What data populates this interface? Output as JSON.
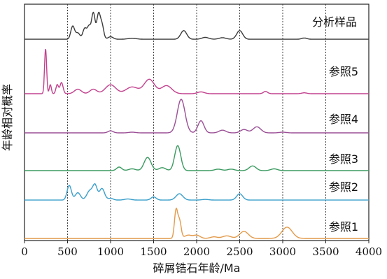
{
  "chart_data": {
    "type": "line",
    "xlabel": "碎屑锆石年龄/Ma",
    "ylabel": "年龄相对概率",
    "xlim": [
      0,
      4000
    ],
    "xticks": [
      0,
      500,
      1000,
      1500,
      2000,
      2500,
      3000,
      3500,
      4000
    ],
    "grid_x": [
      500,
      1000,
      1500,
      2000,
      2500,
      3000,
      3500
    ],
    "series": [
      {
        "name": "分析样品",
        "color": "#3a3a3a",
        "baseline": 0.02,
        "peaks": [
          [
            560,
            0.42,
            22
          ],
          [
            620,
            0.2,
            25
          ],
          [
            700,
            0.35,
            22
          ],
          [
            750,
            0.4,
            20
          ],
          [
            800,
            0.85,
            20
          ],
          [
            860,
            0.8,
            20
          ],
          [
            900,
            0.45,
            20
          ],
          [
            1000,
            0.08,
            30
          ],
          [
            1250,
            0.03,
            50
          ],
          [
            1850,
            0.28,
            35
          ],
          [
            2100,
            0.06,
            40
          ],
          [
            2300,
            0.05,
            40
          ],
          [
            2500,
            0.28,
            35
          ],
          [
            3250,
            0.04,
            30
          ]
        ]
      },
      {
        "name": "参照5",
        "color": "#c2418e",
        "baseline": 0.0,
        "peaks": [
          [
            245,
            1.0,
            12
          ],
          [
            300,
            0.2,
            12
          ],
          [
            380,
            0.2,
            15
          ],
          [
            430,
            0.25,
            18
          ],
          [
            620,
            0.1,
            40
          ],
          [
            800,
            0.1,
            40
          ],
          [
            1000,
            0.2,
            60
          ],
          [
            1250,
            0.15,
            70
          ],
          [
            1450,
            0.32,
            60
          ],
          [
            1650,
            0.18,
            60
          ],
          [
            2050,
            0.04,
            40
          ],
          [
            2800,
            0.05,
            25
          ],
          [
            3250,
            0.02,
            30
          ]
        ]
      },
      {
        "name": "参照4",
        "color": "#9b4f96",
        "baseline": 0.0,
        "peaks": [
          [
            1000,
            0.06,
            30
          ],
          [
            1250,
            0.02,
            40
          ],
          [
            1820,
            1.0,
            45
          ],
          [
            2050,
            0.36,
            35
          ],
          [
            2300,
            0.08,
            40
          ],
          [
            2550,
            0.1,
            40
          ],
          [
            2700,
            0.18,
            45
          ],
          [
            3000,
            0.02,
            40
          ]
        ]
      },
      {
        "name": "参照3",
        "color": "#3a9a60",
        "baseline": 0.0,
        "peaks": [
          [
            1100,
            0.12,
            30
          ],
          [
            1250,
            0.06,
            40
          ],
          [
            1430,
            0.45,
            40
          ],
          [
            1600,
            0.1,
            40
          ],
          [
            1780,
            0.85,
            35
          ],
          [
            2250,
            0.05,
            40
          ],
          [
            2400,
            0.05,
            40
          ],
          [
            2650,
            0.16,
            40
          ],
          [
            2900,
            0.06,
            40
          ]
        ]
      },
      {
        "name": "参照2",
        "color": "#3b9fcb",
        "baseline": 0.03,
        "peaks": [
          [
            520,
            0.7,
            25
          ],
          [
            620,
            0.35,
            30
          ],
          [
            760,
            0.45,
            35
          ],
          [
            820,
            0.65,
            25
          ],
          [
            900,
            0.55,
            30
          ],
          [
            1000,
            0.08,
            30
          ],
          [
            1200,
            0.05,
            40
          ],
          [
            1500,
            0.15,
            30
          ],
          [
            1800,
            0.3,
            40
          ],
          [
            2100,
            0.03,
            40
          ],
          [
            2500,
            0.3,
            35
          ]
        ]
      },
      {
        "name": "参照1",
        "color": "#e39a4a",
        "baseline": 0.0,
        "peaks": [
          [
            1760,
            0.85,
            18
          ],
          [
            1800,
            0.55,
            20
          ],
          [
            1900,
            0.1,
            40
          ],
          [
            2000,
            0.1,
            40
          ],
          [
            2200,
            0.05,
            40
          ],
          [
            2350,
            0.08,
            50
          ],
          [
            2550,
            0.22,
            50
          ],
          [
            3050,
            0.35,
            60
          ]
        ]
      }
    ]
  }
}
